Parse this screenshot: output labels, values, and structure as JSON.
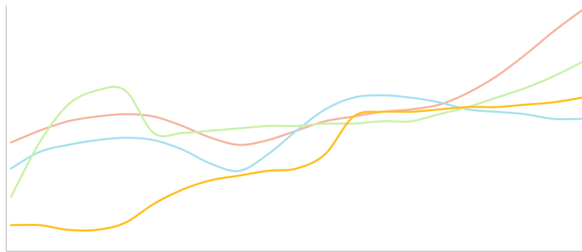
{
  "chart_data": {
    "type": "line",
    "title": "",
    "xlabel": "",
    "ylabel": "",
    "x": [
      0,
      1,
      2,
      3,
      4,
      5,
      6,
      7,
      8,
      9,
      10,
      11,
      12,
      13,
      14,
      15,
      16,
      17,
      18,
      19,
      20
    ],
    "xlim": [
      0,
      20
    ],
    "ylim": [
      0,
      100
    ],
    "grid": false,
    "series": [
      {
        "color": "#f5b5a0",
        "values": [
          42,
          47,
          51,
          53,
          54,
          53,
          49,
          44,
          41,
          43,
          47,
          51,
          53,
          55,
          56,
          58,
          63,
          70,
          79,
          89,
          98
        ]
      },
      {
        "color": "#a8e0f0",
        "values": [
          31,
          38,
          41,
          43,
          44,
          43,
          39,
          33,
          30,
          37,
          47,
          56,
          61,
          62,
          61,
          59,
          56,
          55,
          54,
          52,
          52
        ]
      },
      {
        "color": "#c8f2a8",
        "values": [
          19,
          42,
          58,
          64,
          64,
          46,
          46,
          47,
          48,
          49,
          49,
          50,
          50,
          51,
          51,
          54,
          57,
          61,
          65,
          70,
          76
        ]
      },
      {
        "color": "#ffc01e",
        "values": [
          7,
          7,
          5,
          5,
          8,
          16,
          22,
          26,
          28,
          30,
          31,
          37,
          53,
          55,
          55,
          56,
          57,
          57,
          58,
          59,
          61
        ]
      }
    ]
  }
}
